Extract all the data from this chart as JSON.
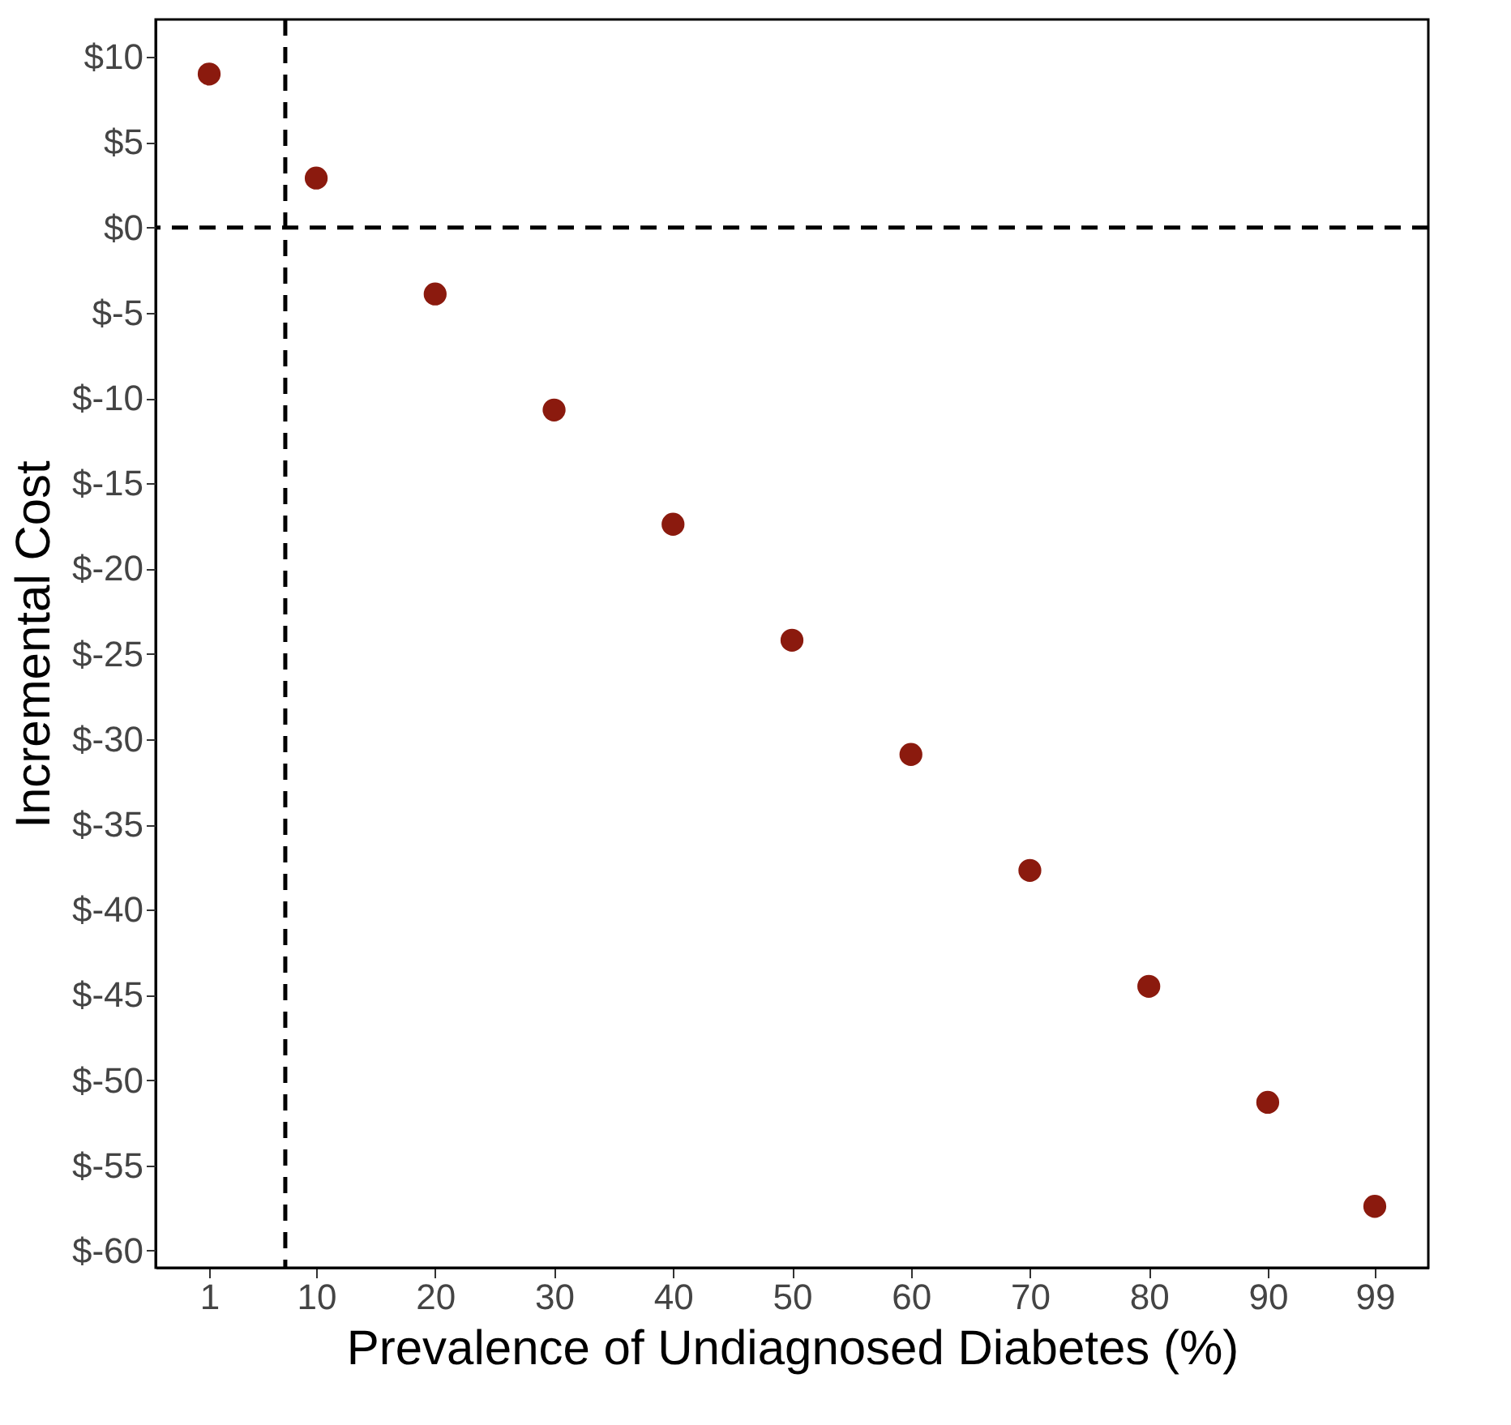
{
  "chart_data": {
    "type": "scatter",
    "xlabel": "Prevalence of Undiagnosed Diabetes (%)",
    "ylabel": "Incremental Cost",
    "x": [
      1,
      10,
      20,
      30,
      40,
      50,
      60,
      70,
      80,
      90,
      99
    ],
    "series": [
      {
        "color": "#8b1a0e",
        "values": [
          9.0,
          2.9,
          -3.9,
          -10.7,
          -17.4,
          -24.2,
          -30.9,
          -37.7,
          -44.5,
          -51.3,
          -57.4
        ]
      }
    ],
    "marker": "circle",
    "xlim": [
      -3.5,
      103.5
    ],
    "ylim": [
      -61,
      12.2
    ],
    "xticks": [
      1,
      10,
      20,
      30,
      40,
      50,
      60,
      70,
      80,
      90,
      99
    ],
    "yticks": [
      {
        "value": 10,
        "label": "$10"
      },
      {
        "value": 5,
        "label": "$5"
      },
      {
        "value": 0,
        "label": "$0"
      },
      {
        "value": -5,
        "label": "$-5"
      },
      {
        "value": -10,
        "label": "$-10"
      },
      {
        "value": -15,
        "label": "$-15"
      },
      {
        "value": -20,
        "label": "$-20"
      },
      {
        "value": -25,
        "label": "$-25"
      },
      {
        "value": -30,
        "label": "$-30"
      },
      {
        "value": -35,
        "label": "$-35"
      },
      {
        "value": -40,
        "label": "$-40"
      },
      {
        "value": -45,
        "label": "$-45"
      },
      {
        "value": -50,
        "label": "$-50"
      },
      {
        "value": -55,
        "label": "$-55"
      },
      {
        "value": -60,
        "label": "$-60"
      }
    ],
    "ref_lines": [
      {
        "axis": "x",
        "value": 7.4,
        "line_style": "dashed"
      },
      {
        "axis": "y",
        "value": 0,
        "line_style": "dashed"
      }
    ],
    "grid": false
  }
}
